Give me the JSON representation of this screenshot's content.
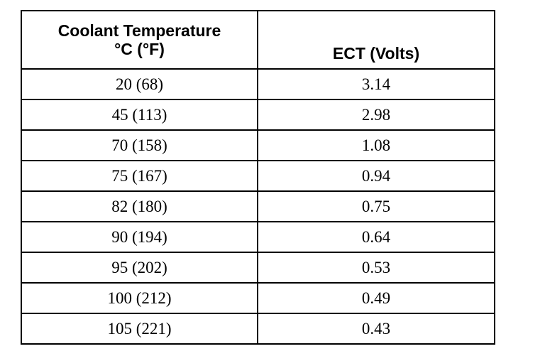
{
  "table": {
    "headers": {
      "temp_line1": "Coolant Temperature",
      "temp_line2": "°C (°F)",
      "ect": "ECT (Volts)"
    },
    "rows": [
      {
        "temp": "20 (68)",
        "volts": "3.14"
      },
      {
        "temp": "45 (113)",
        "volts": "2.98"
      },
      {
        "temp": "70 (158)",
        "volts": "1.08"
      },
      {
        "temp": "75 (167)",
        "volts": "0.94"
      },
      {
        "temp": "82 (180)",
        "volts": "0.75"
      },
      {
        "temp": "90 (194)",
        "volts": "0.64"
      },
      {
        "temp": "95 (202)",
        "volts": "0.53"
      },
      {
        "temp": "100 (212)",
        "volts": "0.49"
      },
      {
        "temp": "105 (221)",
        "volts": "0.43"
      }
    ]
  }
}
